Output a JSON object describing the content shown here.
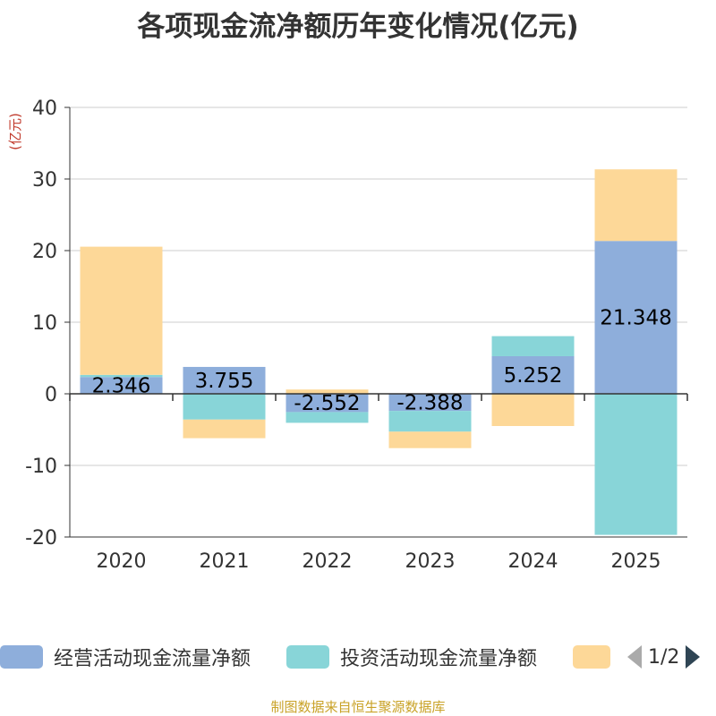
{
  "page": {
    "title": "各项现金流净额历年变化情况(亿元)",
    "footer": "制图数据来自恒生聚源数据库"
  },
  "chart_data": {
    "type": "bar",
    "stacked": true,
    "title": "各项现金流净额历年变化情况(亿元)",
    "ylabel": "(亿元)",
    "xlabel": "",
    "ylim": [
      -20,
      40
    ],
    "yticks": [
      40,
      30,
      20,
      10,
      0,
      -10,
      -20
    ],
    "grid": true,
    "categories": [
      "2020",
      "2021",
      "2022",
      "2023",
      "2024",
      "2025"
    ],
    "series": [
      {
        "name": "经营活动现金流量净额",
        "color": "#8eaedb",
        "values": [
          2.346,
          3.755,
          -2.552,
          -2.388,
          5.252,
          21.348
        ]
      },
      {
        "name": "投资活动现金流量净额",
        "color": "#88d5d8",
        "values": [
          0.3,
          -3.6,
          -1.5,
          -2.9,
          2.8,
          -19.7
        ]
      },
      {
        "name": "",
        "color": "#fdd898",
        "values": [
          17.9,
          -2.6,
          0.6,
          -2.3,
          -4.5,
          10.0
        ]
      }
    ],
    "data_labels": [
      "2.346",
      "3.755",
      "-2.552",
      "-2.388",
      "5.252",
      "21.348"
    ]
  },
  "legend": {
    "items": [
      {
        "label": "经营活动现金流量净额",
        "color": "#8eaedb"
      },
      {
        "label": "投资活动现金流量净额",
        "color": "#88d5d8"
      },
      {
        "label": "",
        "color": "#fdd898"
      }
    ],
    "page_indicator": "1/2",
    "prev_icon": "triangle-left-icon",
    "next_icon": "triangle-right-icon"
  }
}
